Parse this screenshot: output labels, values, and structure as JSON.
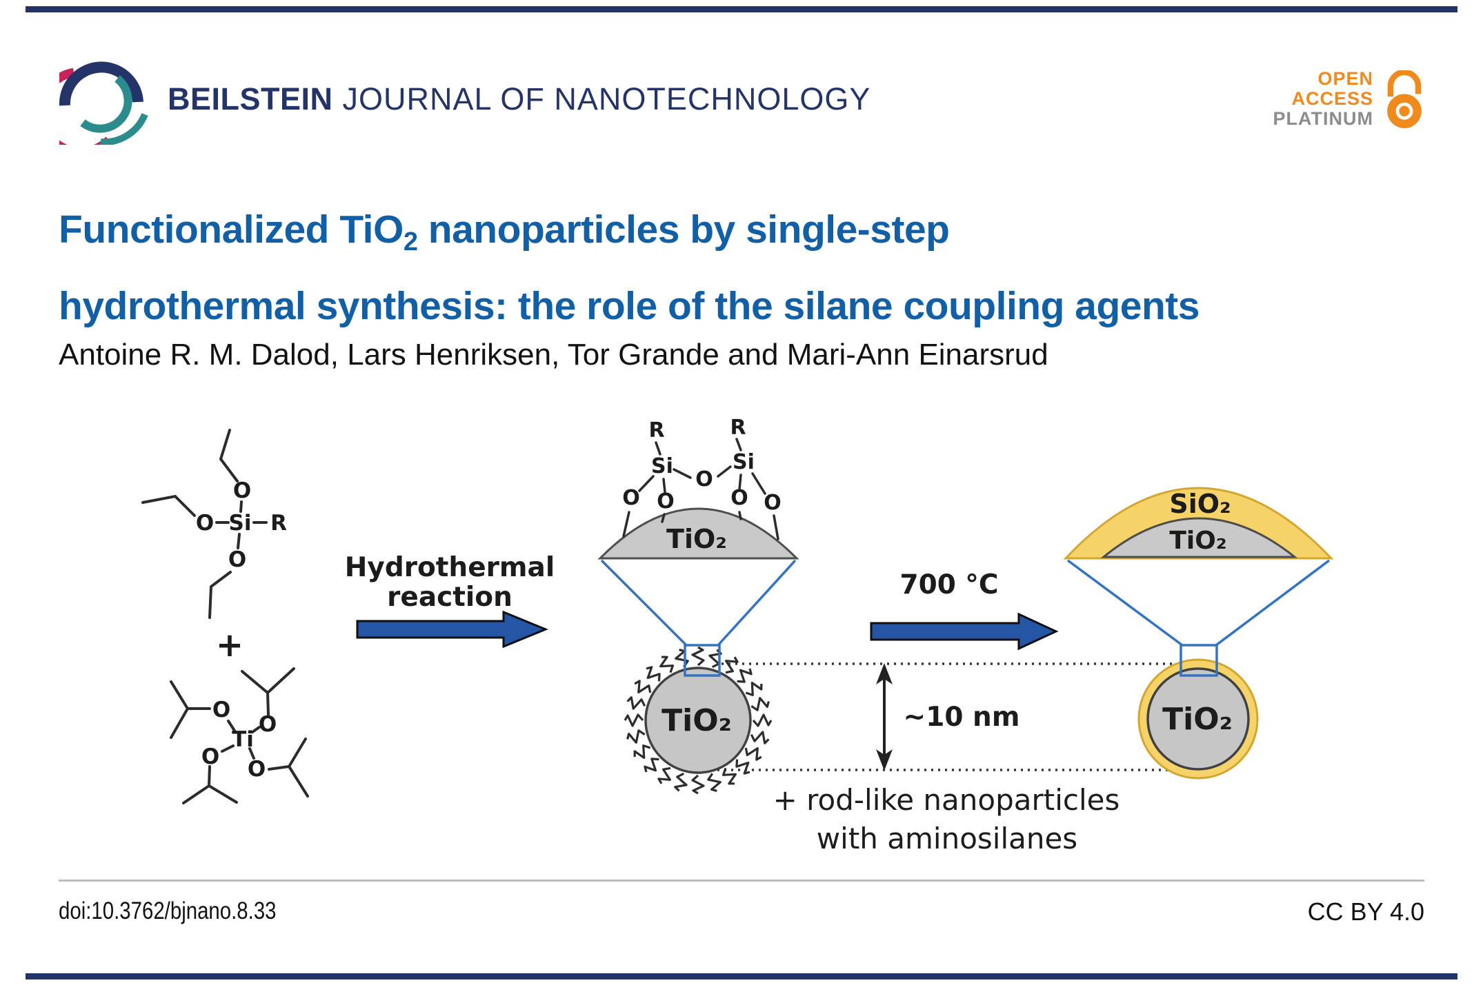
{
  "header": {
    "journal_bold": "BEILSTEIN",
    "journal_rest": "JOURNAL OF NANOTECHNOLOGY",
    "badge": {
      "open": "OPEN",
      "access": "ACCESS",
      "platinum": "PLATINUM"
    }
  },
  "title": {
    "line1_pre": "Functionalized TiO",
    "line1_sub": "2",
    "line1_post": " nanoparticles by single-step",
    "line2": "hydrothermal synthesis: the role of the silane coupling agents"
  },
  "authors": "Antoine R. M. Dalod, Lars Henriksen, Tor Grande and Mari-Ann Einarsrud",
  "figure": {
    "arrow1_label_line1": "Hydrothermal",
    "arrow1_label_line2": "reaction",
    "arrow2_label": "700 °C",
    "size_label": "~10 nm",
    "note_line1": "+ rod-like nanoparticles",
    "note_line2": "with aminosilanes",
    "plus_sign": "+",
    "atoms": {
      "si": "Si",
      "o": "O",
      "ti": "Ti",
      "r": "R"
    },
    "particle_labels": {
      "tio2": "TiO₂",
      "sio2": "SiO₂"
    }
  },
  "footer": {
    "doi": "doi:10.3762/bjnano.8.33",
    "license": "CC BY 4.0"
  },
  "colors": {
    "journal_navy": "#243469",
    "title_blue": "#1160a7",
    "arrow_blue": "#2456a5",
    "cone_blue": "#3273c4",
    "silica_yellow": "#f6d369",
    "particle_gray": "#c9c9c9",
    "open_access_orange": "#f18a1c",
    "platinum_gray": "#8c8c8c"
  }
}
